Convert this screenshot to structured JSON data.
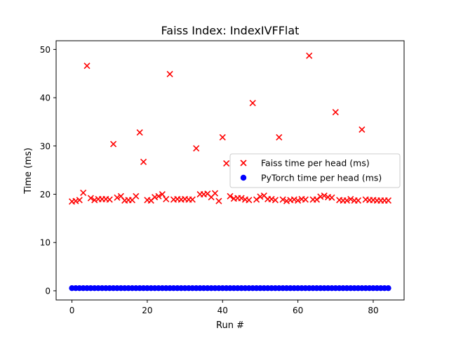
{
  "chart_data": {
    "type": "scatter",
    "title": "Faiss Index: IndexIVFFlat",
    "xlabel": "Run #",
    "ylabel": "Time (ms)",
    "xlim": [
      -4.2,
      88.2
    ],
    "ylim": [
      -1.9,
      51.8
    ],
    "xticks": [
      0,
      20,
      40,
      60,
      80
    ],
    "yticks": [
      0,
      10,
      20,
      30,
      40,
      50
    ],
    "grid": false,
    "legend_position": "center-right",
    "series": [
      {
        "name": "Faiss time per head (ms)",
        "marker": "x",
        "color": "#ff0000",
        "x": [
          0,
          1,
          2,
          3,
          4,
          5,
          6,
          7,
          8,
          9,
          10,
          11,
          12,
          13,
          14,
          15,
          16,
          17,
          18,
          19,
          20,
          21,
          22,
          23,
          24,
          25,
          26,
          27,
          28,
          29,
          30,
          31,
          32,
          33,
          34,
          35,
          36,
          37,
          38,
          39,
          40,
          41,
          42,
          43,
          44,
          45,
          46,
          47,
          48,
          49,
          50,
          51,
          52,
          53,
          54,
          55,
          56,
          57,
          58,
          59,
          60,
          61,
          62,
          63,
          64,
          65,
          66,
          67,
          68,
          69,
          70,
          71,
          72,
          73,
          74,
          75,
          76,
          77,
          78,
          79,
          80,
          81,
          82,
          83,
          84
        ],
        "y": [
          18.5,
          18.6,
          18.8,
          20.3,
          46.6,
          19.2,
          18.8,
          19.0,
          19.0,
          19.0,
          18.9,
          30.4,
          19.3,
          19.6,
          18.7,
          18.8,
          18.8,
          19.6,
          32.8,
          26.7,
          18.8,
          18.7,
          19.4,
          19.6,
          20.0,
          19.0,
          44.9,
          18.9,
          19.0,
          18.9,
          19.0,
          18.9,
          18.9,
          29.5,
          20.0,
          20.0,
          20.1,
          19.4,
          20.2,
          18.6,
          31.8,
          26.4,
          19.6,
          19.1,
          19.2,
          19.2,
          18.9,
          18.8,
          38.9,
          18.9,
          19.5,
          19.7,
          19.0,
          19.0,
          18.8,
          31.8,
          18.9,
          18.6,
          18.8,
          18.9,
          18.7,
          19.0,
          18.9,
          48.7,
          18.9,
          18.9,
          19.5,
          19.7,
          19.4,
          19.3,
          37.0,
          18.8,
          18.7,
          18.7,
          19.0,
          18.7,
          18.7,
          33.4,
          18.9,
          18.8,
          18.8,
          18.7,
          18.7,
          18.7,
          18.7
        ]
      },
      {
        "name": "PyTorch time per head (ms)",
        "marker": "o",
        "color": "#0000ff",
        "x": [
          0,
          1,
          2,
          3,
          4,
          5,
          6,
          7,
          8,
          9,
          10,
          11,
          12,
          13,
          14,
          15,
          16,
          17,
          18,
          19,
          20,
          21,
          22,
          23,
          24,
          25,
          26,
          27,
          28,
          29,
          30,
          31,
          32,
          33,
          34,
          35,
          36,
          37,
          38,
          39,
          40,
          41,
          42,
          43,
          44,
          45,
          46,
          47,
          48,
          49,
          50,
          51,
          52,
          53,
          54,
          55,
          56,
          57,
          58,
          59,
          60,
          61,
          62,
          63,
          64,
          65,
          66,
          67,
          68,
          69,
          70,
          71,
          72,
          73,
          74,
          75,
          76,
          77,
          78,
          79,
          80,
          81,
          82,
          83,
          84
        ],
        "y": [
          0.55,
          0.55,
          0.55,
          0.55,
          0.55,
          0.55,
          0.55,
          0.55,
          0.55,
          0.55,
          0.55,
          0.55,
          0.55,
          0.55,
          0.55,
          0.55,
          0.55,
          0.55,
          0.55,
          0.55,
          0.55,
          0.55,
          0.55,
          0.55,
          0.55,
          0.55,
          0.55,
          0.55,
          0.55,
          0.55,
          0.55,
          0.55,
          0.55,
          0.55,
          0.55,
          0.55,
          0.55,
          0.55,
          0.55,
          0.55,
          0.55,
          0.55,
          0.55,
          0.55,
          0.55,
          0.55,
          0.55,
          0.55,
          0.55,
          0.55,
          0.55,
          0.55,
          0.55,
          0.55,
          0.55,
          0.55,
          0.55,
          0.55,
          0.55,
          0.55,
          0.55,
          0.55,
          0.55,
          0.55,
          0.55,
          0.55,
          0.55,
          0.55,
          0.55,
          0.55,
          0.55,
          0.55,
          0.55,
          0.55,
          0.55,
          0.55,
          0.55,
          0.55,
          0.55,
          0.55,
          0.55,
          0.55,
          0.55,
          0.55,
          0.55
        ]
      }
    ]
  }
}
